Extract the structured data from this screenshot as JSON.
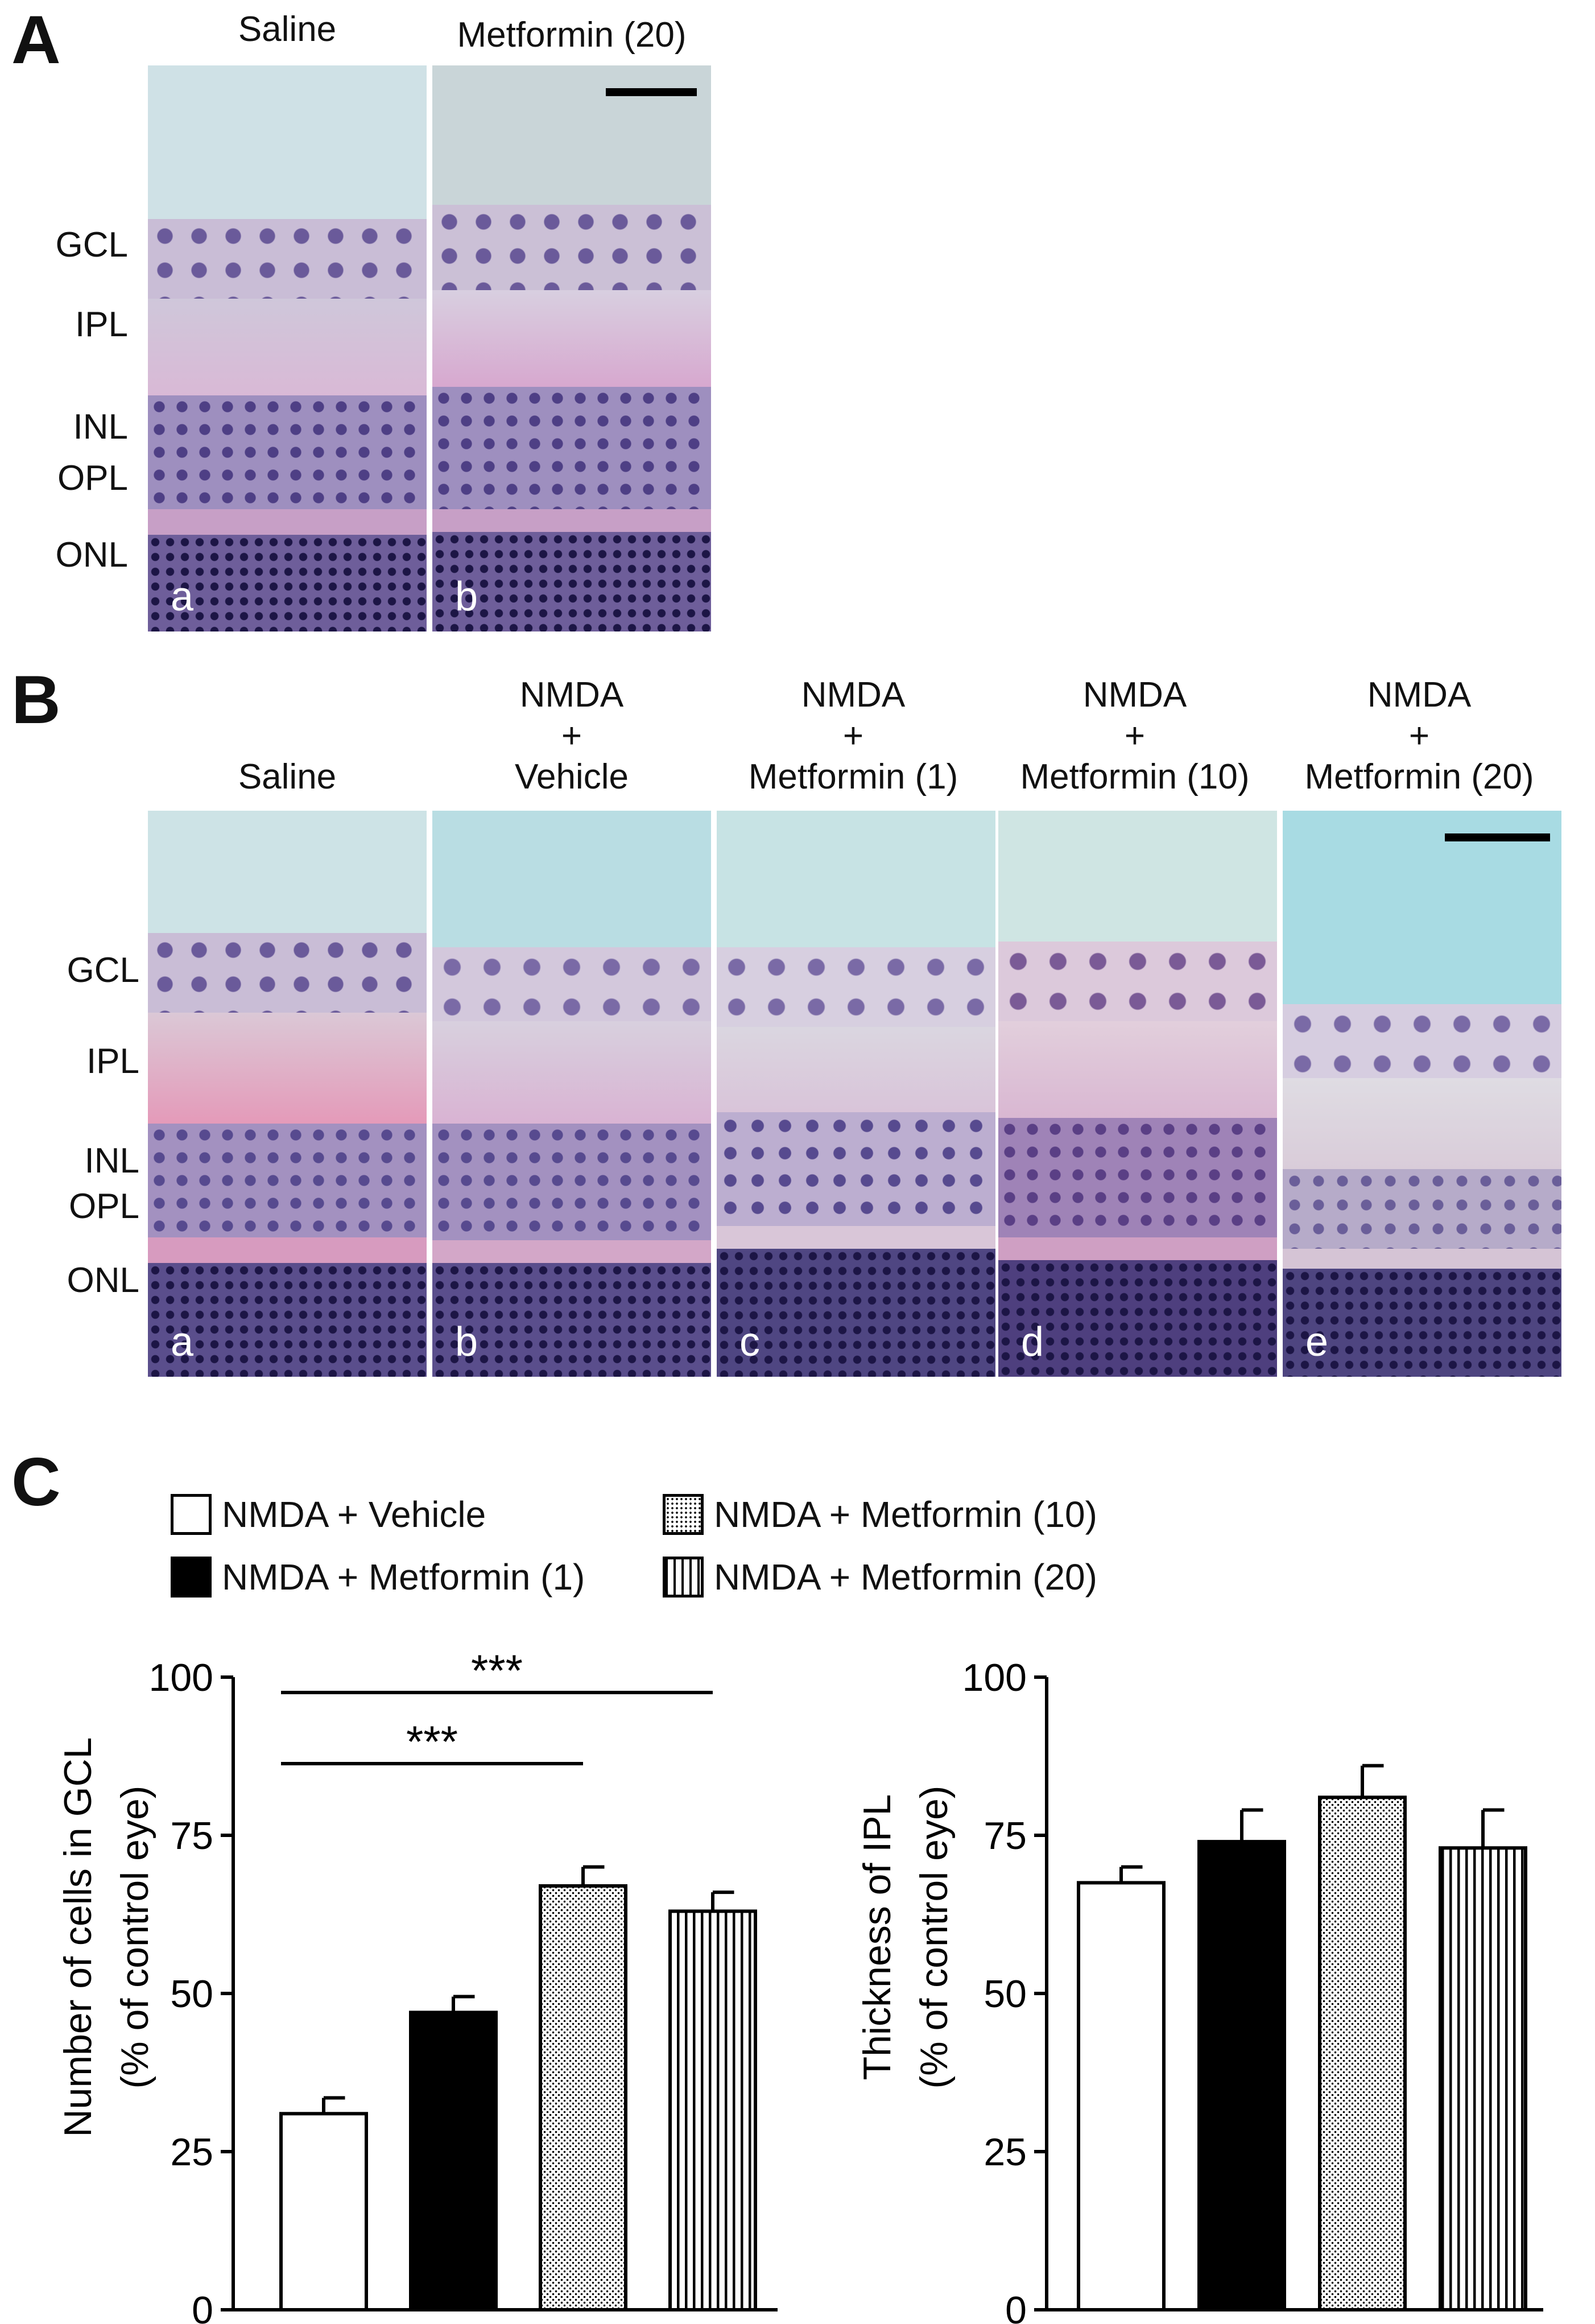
{
  "panel_a": {
    "letter": "A",
    "columns": [
      {
        "title": "Saline",
        "sublabel": "a",
        "vitreous_color": "#cfe1e6"
      },
      {
        "title": "Metformin (20)",
        "sublabel": "b",
        "vitreous_color": "#c9d5d8"
      }
    ],
    "layers": [
      "GCL",
      "IPL",
      "INL",
      "OPL",
      "ONL"
    ]
  },
  "panel_b": {
    "letter": "B",
    "columns": [
      {
        "line1": "",
        "line2": "",
        "line3": "Saline",
        "sublabel": "a",
        "vitreous_color": "#cde3e6"
      },
      {
        "line1": "NMDA",
        "line2": "+",
        "line3": "Vehicle",
        "sublabel": "b",
        "vitreous_color": "#b9dde3"
      },
      {
        "line1": "NMDA",
        "line2": "+",
        "line3": "Metformin (1)",
        "sublabel": "c",
        "vitreous_color": "#c7e3e4"
      },
      {
        "line1": "NMDA",
        "line2": "+",
        "line3": "Metformin (10)",
        "sublabel": "d",
        "vitreous_color": "#cfe5e3"
      },
      {
        "line1": "NMDA",
        "line2": "+",
        "line3": "Metformin (20)",
        "sublabel": "e",
        "vitreous_color": "#a8dbe3"
      }
    ],
    "layers": [
      "GCL",
      "IPL",
      "INL",
      "OPL",
      "ONL"
    ]
  },
  "panel_c": {
    "letter": "C",
    "legend": [
      {
        "label": "NMDA + Vehicle",
        "pattern": "white"
      },
      {
        "label": "NMDA + Metformin (1)",
        "pattern": "black"
      },
      {
        "label": "NMDA + Metformin (10)",
        "pattern": "dots"
      },
      {
        "label": "NMDA + Metformin (20)",
        "pattern": "vertical-lines"
      }
    ]
  },
  "chart_data": [
    {
      "type": "bar",
      "categories": [
        "NMDA + Vehicle",
        "NMDA + Metformin (1)",
        "NMDA + Metformin (10)",
        "NMDA + Metformin (20)"
      ],
      "values": [
        31,
        47,
        67,
        63
      ],
      "errors": [
        2.5,
        2.5,
        3,
        3
      ],
      "patterns": [
        "white",
        "black",
        "dots",
        "vertical-lines"
      ],
      "ylabel_line1": "Number of cells in GCL",
      "ylabel_line2": "(% of control eye)",
      "ylim": [
        0,
        100
      ],
      "yticks": [
        0,
        25,
        50,
        75,
        100
      ],
      "significance": [
        {
          "from": 0,
          "to": 2,
          "label": "***"
        },
        {
          "from": 0,
          "to": 3,
          "label": "***"
        }
      ]
    },
    {
      "type": "bar",
      "categories": [
        "NMDA + Vehicle",
        "NMDA + Metformin (1)",
        "NMDA + Metformin (10)",
        "NMDA + Metformin (20)"
      ],
      "values": [
        67.5,
        74,
        81,
        73
      ],
      "errors": [
        2.5,
        5,
        5,
        6
      ],
      "patterns": [
        "white",
        "black",
        "dots",
        "vertical-lines"
      ],
      "ylabel_line1": "Thickness of IPL",
      "ylabel_line2": "(% of control eye)",
      "ylim": [
        0,
        100
      ],
      "yticks": [
        0,
        25,
        50,
        75,
        100
      ],
      "significance": []
    }
  ]
}
